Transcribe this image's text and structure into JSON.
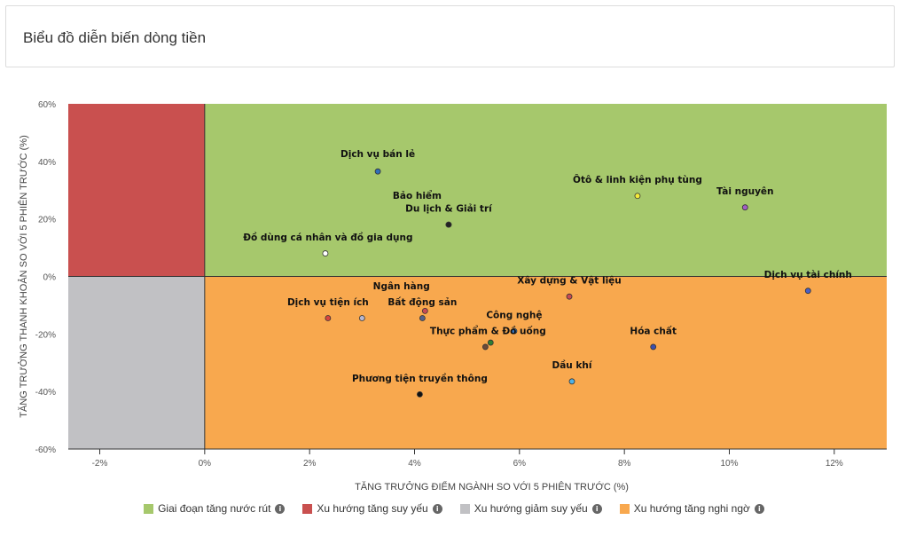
{
  "header": {
    "title": "Biểu đồ diễn biến dòng tiền"
  },
  "colors": {
    "quadrant_top_right": "#a6c86c",
    "quadrant_top_left": "#c9504f",
    "quadrant_bottom_left": "#c1c1c4",
    "quadrant_bottom_right": "#f8a84e",
    "axis": "#333333",
    "label": "#111111"
  },
  "legend": [
    {
      "label": "Giai đoạn tăng nước rút",
      "color": "#a6c86c",
      "icon": "info-icon"
    },
    {
      "label": "Xu hướng tăng suy yếu",
      "color": "#c9504f",
      "icon": "info-icon"
    },
    {
      "label": "Xu hướng giảm suy yếu",
      "color": "#c1c1c4",
      "icon": "info-icon"
    },
    {
      "label": "Xu hướng tăng nghi ngờ",
      "color": "#f8a84e",
      "icon": "info-icon"
    }
  ],
  "chart_data": {
    "type": "scatter",
    "xlabel": "TĂNG TRƯỞNG ĐIỂM NGÀNH SO VỚI 5 PHIÊN TRƯỚC (%)",
    "ylabel": "TĂNG TRƯỞNG THANH KHOẢN SO VỚI 5 PHIÊN TRƯỚC (%)",
    "xlim": [
      -2.6,
      13.0
    ],
    "ylim": [
      -60,
      60
    ],
    "xticks": [
      -2,
      0,
      2,
      4,
      6,
      8,
      10,
      12
    ],
    "yticks": [
      -60,
      -40,
      -20,
      0,
      20,
      40,
      60
    ],
    "xtick_labels": [
      "-2%",
      "0%",
      "2%",
      "4%",
      "6%",
      "8%",
      "10%",
      "12%"
    ],
    "ytick_labels": [
      "-60%",
      "-40%",
      "-20%",
      "0%",
      "20%",
      "40%",
      "60%"
    ],
    "grid": false,
    "legend_position": "bottom",
    "points": [
      {
        "name": "Dịch vụ bán lẻ",
        "x": 3.3,
        "y": 36.5,
        "color": "#2f6fba"
      },
      {
        "name": "Bảo hiểm",
        "x": 4.65,
        "y": 18,
        "color": "#1e3a5f"
      },
      {
        "name": "Du lịch & Giải trí",
        "x": 4.65,
        "y": 18,
        "color": "#222222"
      },
      {
        "name": "Đồ dùng cá nhân và đồ gia dụng",
        "x": 2.3,
        "y": 8,
        "color": "#ffffff"
      },
      {
        "name": "Ôtô & linh kiện phụ tùng",
        "x": 8.25,
        "y": 28,
        "color": "#f5ec3a"
      },
      {
        "name": "Tài nguyên",
        "x": 10.3,
        "y": 24,
        "color": "#a35fc6"
      },
      {
        "name": "Dịch vụ tài chính",
        "x": 11.5,
        "y": -5,
        "color": "#4a5fc7"
      },
      {
        "name": "Xây dựng & Vật liệu",
        "x": 6.95,
        "y": -7,
        "color": "#c84a55"
      },
      {
        "name": "Ngân hàng",
        "x": 4.2,
        "y": -12,
        "color": "#c84a55"
      },
      {
        "name": "Bất động sản",
        "x": 4.15,
        "y": -14.5,
        "color": "#556088"
      },
      {
        "name": "Dịch vụ tiện ích",
        "x": 2.35,
        "y": -14.5,
        "color": "#d8443f"
      },
      {
        "name": "Dịch vụ tiện ích (2)",
        "x": 3.0,
        "y": -14.5,
        "color": "#b7b7d0"
      },
      {
        "name": "Công nghệ",
        "x": 5.9,
        "y": -19,
        "color": "#3a78c2"
      },
      {
        "name": "Thực phẩm & Đồ uống",
        "x": 5.45,
        "y": -23,
        "color": "#2e7d32"
      },
      {
        "name": "Thực phẩm & Đồ uống (2)",
        "x": 5.35,
        "y": -24.5,
        "color": "#6b4a3a"
      },
      {
        "name": "Hóa chất",
        "x": 8.55,
        "y": -24.5,
        "color": "#3b4fae"
      },
      {
        "name": "Dầu khí",
        "x": 7.0,
        "y": -36.5,
        "color": "#4fb3e8"
      },
      {
        "name": "Phương tiện truyền thông",
        "x": 4.1,
        "y": -41,
        "color": "#111111"
      }
    ],
    "labels": [
      {
        "text": "Dịch vụ bán lẻ",
        "x": 3.3,
        "y": 41.5
      },
      {
        "text": "Bảo hiểm",
        "x": 4.05,
        "y": 27
      },
      {
        "text": "Du lịch & Giải trí",
        "x": 4.65,
        "y": 22.5
      },
      {
        "text": "Đồ dùng cá nhân và đồ gia dụng",
        "x": 2.35,
        "y": 12.5
      },
      {
        "text": "Ôtô & linh kiện phụ tùng",
        "x": 8.25,
        "y": 32.5
      },
      {
        "text": "Tài nguyên",
        "x": 10.3,
        "y": 28.5
      },
      {
        "text": "Dịch vụ tài chính",
        "x": 11.5,
        "y": -0.5
      },
      {
        "text": "Xây dựng & Vật liệu",
        "x": 6.95,
        "y": -2.5
      },
      {
        "text": "Ngân hàng",
        "x": 3.75,
        "y": -4.5
      },
      {
        "text": "Bất động sản",
        "x": 4.15,
        "y": -10
      },
      {
        "text": "Dịch vụ tiện ích",
        "x": 2.35,
        "y": -10
      },
      {
        "text": "Công nghệ",
        "x": 5.9,
        "y": -14.5
      },
      {
        "text": "Thực phẩm & Đồ uống",
        "x": 5.4,
        "y": -20
      },
      {
        "text": "Hóa chất",
        "x": 8.55,
        "y": -20
      },
      {
        "text": "Dầu khí",
        "x": 7.0,
        "y": -32
      },
      {
        "text": "Phương tiện truyền thông",
        "x": 4.1,
        "y": -36.5
      }
    ]
  }
}
